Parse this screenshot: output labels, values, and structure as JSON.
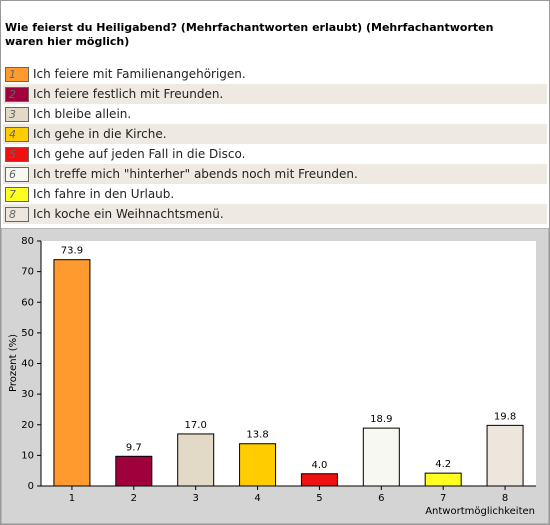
{
  "chart_data": {
    "type": "bar",
    "title": "Wie feierst du Heiligabend? (Mehrfachantworten erlaubt) (Mehrfachantworten waren hier möglich)",
    "categories": [
      "1",
      "2",
      "3",
      "4",
      "5",
      "6",
      "7",
      "8"
    ],
    "legend_labels": [
      "Ich feiere mit Familienangehörigen.",
      "Ich feiere festlich mit Freunden.",
      "Ich bleibe allein.",
      "Ich gehe in die Kirche.",
      "Ich gehe auf jeden Fall in die Disco.",
      "Ich treffe mich \"hinterher\" abends noch mit Freunden.",
      "Ich fahre in den Urlaub.",
      "Ich koche ein Weihnachtsmenü."
    ],
    "values": [
      73.9,
      9.7,
      17.0,
      13.8,
      4.0,
      18.9,
      4.2,
      19.8
    ],
    "value_labels": [
      "73.9",
      "9.7",
      "17.0",
      "13.8",
      "4.0",
      "18.9",
      "4.2",
      "19.8"
    ],
    "colors": [
      "#ff9a2e",
      "#a0003c",
      "#e2d9c6",
      "#ffcc00",
      "#ee1111",
      "#f8f8f2",
      "#ffff22",
      "#ece6dc"
    ],
    "ylabel": "Prozent (%)",
    "xlabel": "Antwortmöglichkeiten",
    "ylim": [
      0,
      80
    ],
    "yticks": [
      0,
      10,
      20,
      30,
      40,
      50,
      60,
      70,
      80
    ]
  }
}
